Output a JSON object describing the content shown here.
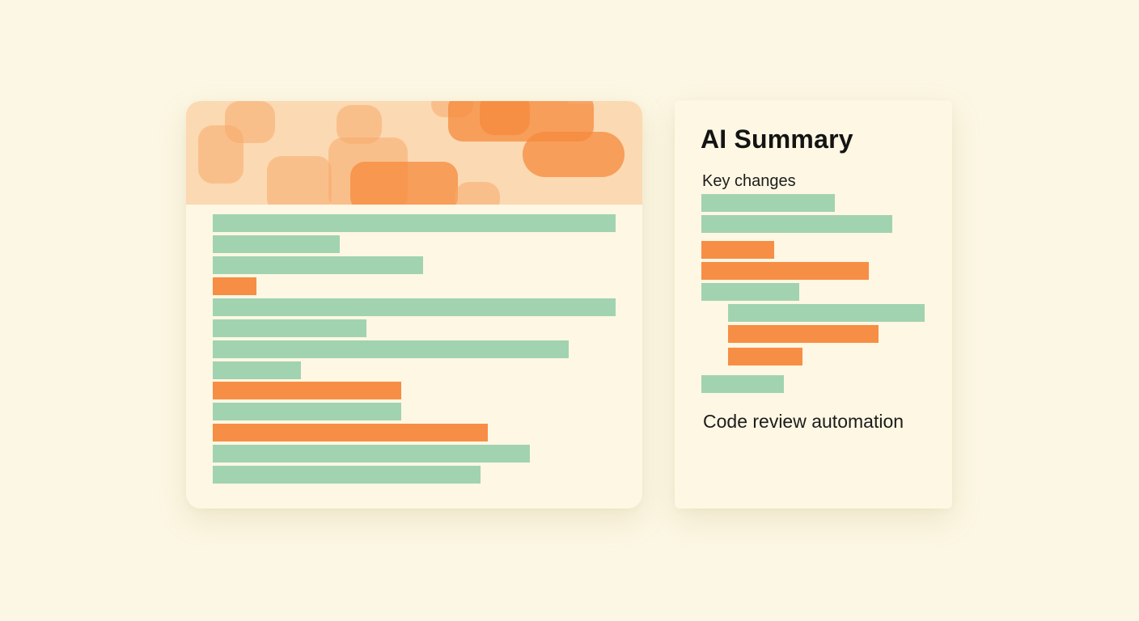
{
  "summary": {
    "title": "AI Summary",
    "subtitle": "Key changes",
    "footer": "Code review automation"
  },
  "colors": {
    "background": "#fcf7e4",
    "panel": "#fdf7e3",
    "banner": "#fbd9b2",
    "added": "#a2d3b1",
    "removed": "#f78e45",
    "text": "#141414"
  }
}
